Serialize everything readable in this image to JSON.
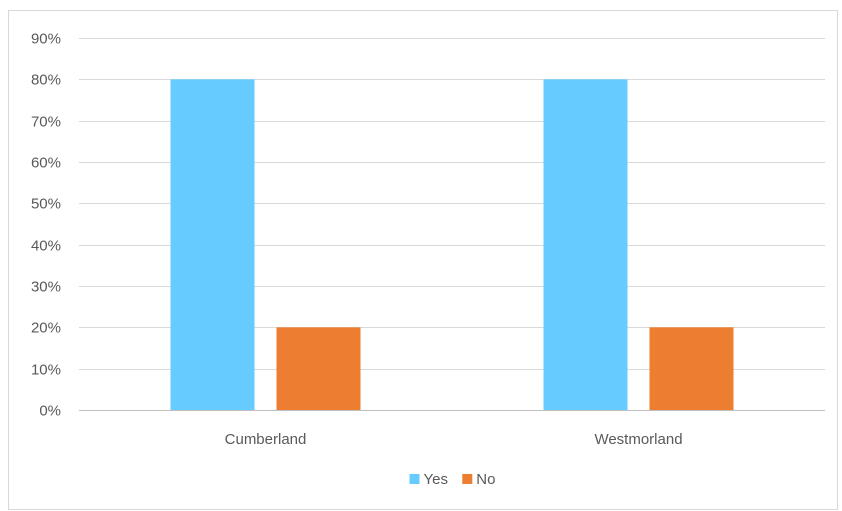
{
  "chart_data": {
    "type": "bar",
    "categories": [
      "Cumberland",
      "Westmorland"
    ],
    "series": [
      {
        "name": "Yes",
        "values": [
          0.8,
          0.8
        ],
        "color": "#66CCFF"
      },
      {
        "name": "No",
        "values": [
          0.2,
          0.2
        ],
        "color": "#ED7D31"
      }
    ],
    "ylim": [
      0,
      0.9
    ],
    "y_ticks": [
      "0%",
      "10%",
      "20%",
      "30%",
      "40%",
      "50%",
      "60%",
      "70%",
      "80%",
      "90%"
    ],
    "y_format": "percent",
    "grid": true,
    "legend_position": "bottom",
    "title": "",
    "xlabel": "",
    "ylabel": ""
  }
}
